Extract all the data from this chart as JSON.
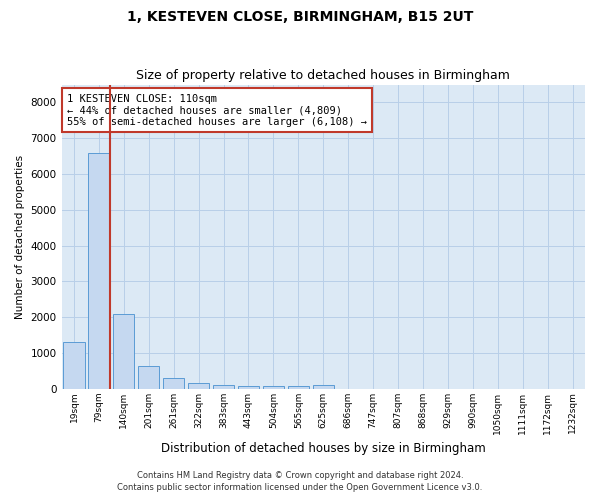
{
  "title": "1, KESTEVEN CLOSE, BIRMINGHAM, B15 2UT",
  "subtitle": "Size of property relative to detached houses in Birmingham",
  "xlabel": "Distribution of detached houses by size in Birmingham",
  "ylabel": "Number of detached properties",
  "categories": [
    "19sqm",
    "79sqm",
    "140sqm",
    "201sqm",
    "261sqm",
    "322sqm",
    "383sqm",
    "443sqm",
    "504sqm",
    "565sqm",
    "625sqm",
    "686sqm",
    "747sqm",
    "807sqm",
    "868sqm",
    "929sqm",
    "990sqm",
    "1050sqm",
    "1111sqm",
    "1172sqm",
    "1232sqm"
  ],
  "values": [
    1300,
    6580,
    2080,
    650,
    290,
    150,
    100,
    90,
    90,
    90,
    100,
    0,
    0,
    0,
    0,
    0,
    0,
    0,
    0,
    0,
    0
  ],
  "bar_color": "#c5d8f0",
  "bar_edge_color": "#5b9bd5",
  "vline_color": "#c0392b",
  "ylim": [
    0,
    8500
  ],
  "yticks": [
    0,
    1000,
    2000,
    3000,
    4000,
    5000,
    6000,
    7000,
    8000
  ],
  "annotation_line1": "1 KESTEVEN CLOSE: 110sqm",
  "annotation_line2": "← 44% of detached houses are smaller (4,809)",
  "annotation_line3": "55% of semi-detached houses are larger (6,108) →",
  "annotation_box_color": "#ffffff",
  "annotation_box_edge": "#c0392b",
  "footer_line1": "Contains HM Land Registry data © Crown copyright and database right 2024.",
  "footer_line2": "Contains public sector information licensed under the Open Government Licence v3.0.",
  "background_color": "#ffffff",
  "plot_bg_color": "#dce9f5",
  "grid_color": "#b8cfe8",
  "title_fontsize": 10,
  "subtitle_fontsize": 9
}
